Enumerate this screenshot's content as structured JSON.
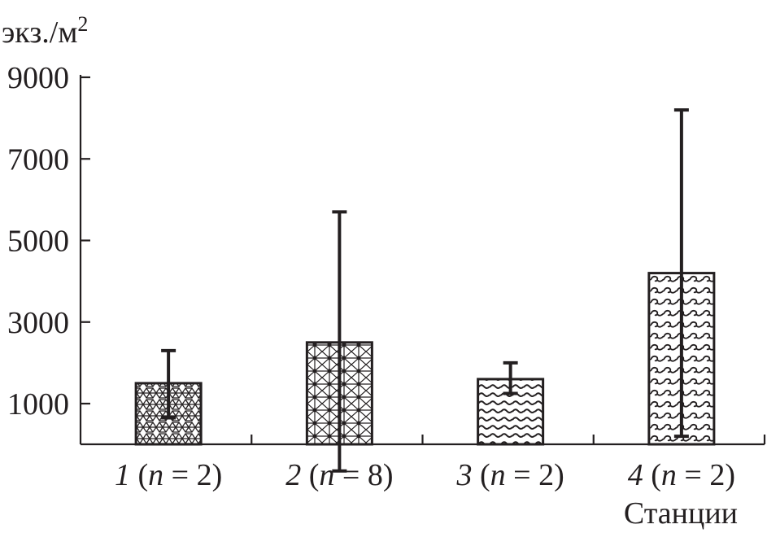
{
  "chart_data": {
    "type": "bar",
    "title": "",
    "ylabel": "экз./м",
    "ylabel_sup": "2",
    "xlabel": "Станции",
    "ylim": [
      0,
      9000
    ],
    "yticks": [
      1000,
      3000,
      5000,
      7000,
      9000
    ],
    "ytick_labels": [
      "1000",
      "3000",
      "5000",
      "7000",
      "9000"
    ],
    "categories": [
      {
        "num": "1",
        "pre": " (",
        "n": "n",
        "post": " = 2)"
      },
      {
        "num": "2",
        "pre": " (",
        "n": "n",
        "post": " = 8)"
      },
      {
        "num": "3",
        "pre": " (",
        "n": "n",
        "post": " = 2)"
      },
      {
        "num": "4",
        "pre": " (",
        "n": "n",
        "post": " = 2)"
      }
    ],
    "values": [
      1500,
      2500,
      1600,
      4200
    ],
    "error_low": [
      650,
      -650,
      1250,
      200
    ],
    "error_high": [
      2300,
      5700,
      2000,
      8200
    ],
    "patterns": [
      "hex-mesh",
      "triangle-mesh",
      "wave-small",
      "wave-large"
    ],
    "grid": false,
    "colors": {
      "ink": "#231f20",
      "background": "#ffffff"
    }
  }
}
